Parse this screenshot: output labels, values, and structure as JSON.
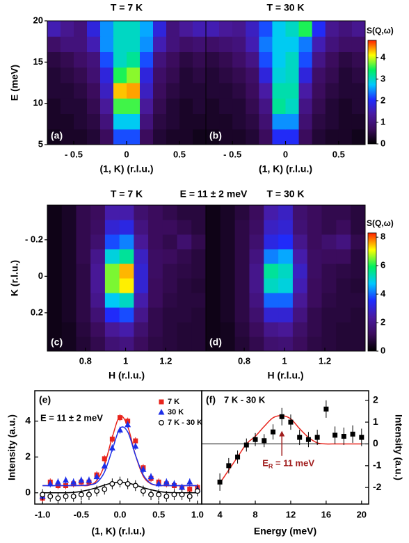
{
  "chart_data": [
    {
      "type": "heatmap",
      "xlabel": "(1, K) (r.l.u.)",
      "ylabel": "E (meV)",
      "xlim": [
        -0.75,
        0.75
      ],
      "ylim": [
        5,
        20
      ],
      "xticks": [
        {
          "value": -0.5,
          "label": "- 0.5"
        },
        0,
        0.5
      ],
      "yticks": [
        5,
        10,
        15,
        20
      ],
      "colormap": [
        "#000000",
        "#3b0c5c",
        "#4a1aa0",
        "#1e2cff",
        "#00c8ff",
        "#00f060",
        "#ffff00",
        "#ff2000"
      ],
      "colorbar": {
        "label": "S(Q,ω)",
        "lim": [
          0,
          4.8
        ],
        "ticks": [
          0,
          1,
          2,
          3,
          4
        ]
      },
      "panels": [
        {
          "title": "T = 7 K",
          "label": "(a)",
          "z": [
            [
              0.2,
              0.3,
              0.3,
              0.4,
              0.7,
              2.2,
              2.2,
              0.7,
              0.4,
              0.3,
              0.3,
              0.2
            ],
            [
              0.3,
              0.3,
              0.4,
              0.5,
              1.0,
              2.8,
              2.8,
              1.0,
              0.5,
              0.4,
              0.3,
              0.3
            ],
            [
              0.3,
              0.4,
              0.4,
              0.6,
              1.3,
              3.6,
              3.6,
              1.3,
              0.6,
              0.4,
              0.3,
              0.4
            ],
            [
              0.4,
              0.4,
              0.5,
              0.7,
              1.6,
              4.3,
              4.4,
              1.6,
              0.7,
              0.5,
              0.4,
              0.4
            ],
            [
              0.4,
              0.5,
              0.6,
              0.9,
              1.8,
              3.5,
              3.8,
              1.8,
              0.8,
              0.6,
              0.4,
              0.5
            ],
            [
              0.5,
              0.6,
              0.8,
              1.0,
              2.2,
              3.0,
              3.2,
              2.2,
              1.0,
              0.7,
              0.5,
              0.6
            ],
            [
              0.8,
              1.0,
              1.0,
              1.5,
              2.5,
              3.0,
              3.0,
              2.5,
              1.5,
              1.0,
              0.8,
              0.9
            ],
            [
              1.5,
              1.2,
              1.0,
              1.8,
              2.5,
              3.0,
              3.0,
              2.6,
              1.8,
              1.0,
              1.3,
              1.5
            ]
          ]
        },
        {
          "title": "T = 30 K",
          "label": "(b)",
          "z": [
            [
              0.2,
              0.3,
              0.3,
              0.4,
              0.7,
              2.0,
              2.0,
              0.7,
              0.4,
              0.3,
              0.3,
              0.2
            ],
            [
              0.3,
              0.3,
              0.4,
              0.5,
              0.9,
              2.5,
              2.5,
              0.9,
              0.5,
              0.4,
              0.3,
              0.3
            ],
            [
              0.3,
              0.4,
              0.4,
              0.6,
              1.1,
              3.2,
              3.0,
              1.1,
              0.6,
              0.4,
              0.3,
              0.4
            ],
            [
              0.4,
              0.4,
              0.5,
              0.7,
              1.4,
              3.1,
              3.1,
              1.4,
              0.7,
              0.5,
              0.4,
              0.4
            ],
            [
              0.4,
              0.5,
              0.6,
              0.8,
              1.8,
              2.9,
              3.0,
              1.8,
              0.8,
              0.6,
              0.4,
              0.5
            ],
            [
              0.5,
              0.6,
              0.8,
              1.1,
              2.2,
              2.8,
              3.0,
              2.2,
              1.1,
              0.7,
              0.5,
              0.6
            ],
            [
              0.8,
              0.9,
              1.0,
              1.5,
              2.4,
              2.8,
              2.8,
              2.4,
              1.5,
              1.0,
              0.8,
              0.8
            ],
            [
              1.5,
              1.3,
              1.2,
              1.6,
              2.2,
              2.8,
              3.0,
              3.5,
              2.0,
              1.2,
              1.0,
              1.2
            ]
          ]
        }
      ]
    },
    {
      "type": "heatmap",
      "subtitle": "E = 11 ± 2 meV",
      "xlabel": "H (r.l.u.)",
      "ylabel": "K (r.l.u.)",
      "xlim": [
        0.61,
        1.4
      ],
      "ylim": [
        0.41,
        -0.39
      ],
      "xticks": [
        0.8,
        1,
        1.2
      ],
      "yticks": [
        {
          "value": -0.2,
          "label": "- 0.2"
        },
        0,
        0.2
      ],
      "colormap": [
        "#000000",
        "#3b0c5c",
        "#4a1aa0",
        "#1e2cff",
        "#00c8ff",
        "#00f060",
        "#ffff00",
        "#ff2000"
      ],
      "colorbar": {
        "label": "S(Q,ω)",
        "lim": [
          0,
          8.3
        ],
        "ticks": [
          0,
          2,
          4,
          6,
          8
        ]
      },
      "panels": [
        {
          "title": "T = 7 K",
          "label": "(c)",
          "z": [
            [
              0.3,
              0.4,
              0.7,
              1.0,
              1.6,
              1.8,
              1.2,
              0.9,
              0.8,
              0.7,
              0.7
            ],
            [
              0.3,
              0.4,
              0.8,
              1.2,
              2.2,
              2.5,
              1.5,
              1.0,
              0.8,
              0.7,
              0.7
            ],
            [
              0.3,
              0.5,
              0.9,
              1.6,
              3.5,
              3.8,
              2.0,
              1.0,
              0.8,
              0.8,
              0.7
            ],
            [
              0.3,
              0.5,
              0.9,
              2.0,
              4.8,
              5.2,
              2.5,
              1.2,
              0.9,
              0.8,
              0.8
            ],
            [
              0.3,
              0.5,
              0.9,
              2.2,
              6.5,
              7.2,
              3.0,
              1.2,
              1.0,
              0.8,
              0.7
            ],
            [
              0.3,
              0.5,
              0.9,
              2.2,
              6.5,
              7.5,
              3.0,
              1.3,
              1.0,
              0.9,
              0.8
            ],
            [
              0.3,
              0.5,
              1.0,
              2.0,
              5.0,
              5.5,
              2.8,
              1.3,
              1.2,
              1.0,
              0.8
            ],
            [
              0.3,
              0.5,
              1.0,
              1.5,
              3.8,
              4.2,
              2.2,
              1.2,
              1.0,
              1.5,
              1.0
            ],
            [
              0.3,
              0.5,
              1.0,
              1.3,
              3.0,
              3.2,
              1.8,
              1.2,
              1.2,
              1.0,
              0.8
            ],
            [
              0.3,
              0.5,
              1.0,
              1.2,
              2.5,
              2.5,
              1.5,
              1.2,
              1.0,
              0.8,
              0.8
            ]
          ]
        },
        {
          "title": "T = 30 K",
          "label": "(d)",
          "z": [
            [
              0.3,
              0.4,
              0.7,
              1.0,
              1.5,
              1.6,
              1.2,
              0.9,
              0.8,
              0.7,
              0.7
            ],
            [
              0.3,
              0.4,
              0.8,
              1.2,
              2.0,
              2.2,
              1.4,
              1.0,
              0.8,
              0.7,
              0.7
            ],
            [
              0.3,
              0.5,
              0.9,
              1.5,
              3.0,
              3.0,
              1.8,
              1.0,
              0.8,
              0.8,
              0.7
            ],
            [
              0.3,
              0.5,
              0.9,
              1.8,
              4.0,
              4.0,
              2.2,
              1.2,
              0.9,
              0.8,
              0.8
            ],
            [
              0.3,
              0.5,
              0.9,
              2.0,
              5.2,
              5.0,
              2.6,
              1.2,
              1.0,
              0.8,
              0.7
            ],
            [
              0.3,
              0.5,
              0.9,
              2.0,
              5.5,
              5.2,
              2.8,
              1.3,
              1.0,
              0.9,
              0.8
            ],
            [
              0.3,
              0.5,
              0.9,
              1.8,
              4.2,
              4.5,
              2.5,
              1.3,
              1.2,
              1.2,
              0.8
            ],
            [
              0.3,
              0.5,
              0.9,
              1.5,
              3.2,
              3.5,
              2.0,
              1.2,
              1.5,
              1.8,
              1.0
            ],
            [
              0.3,
              0.5,
              0.9,
              1.3,
              2.8,
              3.0,
              1.6,
              1.2,
              1.0,
              1.2,
              0.8
            ],
            [
              0.3,
              0.5,
              0.8,
              1.2,
              2.5,
              2.8,
              1.5,
              1.2,
              1.0,
              1.0,
              0.8
            ]
          ]
        }
      ]
    },
    {
      "type": "scatter",
      "label": "(e)",
      "subtitle": "E = 11 ± 2 meV",
      "xlabel": "(1, K) (r.l.u.)",
      "ylabel": "Intensity (a.u.)",
      "xlim": [
        -1.1,
        1.055
      ],
      "ylim": [
        -0.63,
        5.7
      ],
      "xticks": [
        {
          "value": -1,
          "label": "-1.0"
        },
        {
          "value": -0.5,
          "label": "-0.5"
        },
        {
          "value": 0,
          "label": "0.0"
        },
        {
          "value": 0.5,
          "label": "0.5"
        },
        {
          "value": 1,
          "label": "1.0"
        }
      ],
      "yticks": [
        0,
        2,
        4
      ],
      "legend": "upper right",
      "x": [
        -1.0,
        -0.9,
        -0.8,
        -0.7,
        -0.6,
        -0.5,
        -0.4,
        -0.3,
        -0.2,
        -0.1,
        0.0,
        0.1,
        0.2,
        0.3,
        0.4,
        0.5,
        0.6,
        0.7,
        0.8,
        0.9,
        1.0
      ],
      "series": [
        {
          "name": "7 K",
          "color": "#e8241c",
          "marker": "square",
          "values": [
            -0.3,
            0.6,
            0.4,
            0.4,
            0.5,
            0.6,
            0.6,
            1.0,
            1.9,
            3.0,
            4.2,
            4.0,
            2.9,
            1.4,
            0.8,
            0.6,
            0.5,
            0.4,
            0.3,
            0.2,
            0.3
          ],
          "errors": [
            0.2,
            0.2,
            0.2,
            0.2,
            0.2,
            0.2,
            0.2,
            0.2,
            0.2,
            0.2,
            0.2,
            0.2,
            0.2,
            0.2,
            0.2,
            0.2,
            0.2,
            0.2,
            0.2,
            0.2,
            0.2
          ],
          "fit": [
            0.4,
            0.4,
            0.4,
            0.4,
            0.4,
            0.4,
            0.42,
            0.68,
            1.55,
            3.1,
            4.28,
            3.7,
            2.1,
            0.93,
            0.5,
            0.41,
            0.4,
            0.4,
            0.4,
            0.4,
            0.4
          ]
        },
        {
          "name": "30 K",
          "color": "#1c2ee8",
          "marker": "triangle",
          "values": [
            -0.2,
            0.5,
            0.6,
            0.7,
            0.6,
            0.7,
            0.7,
            0.9,
            1.5,
            2.5,
            3.5,
            3.8,
            2.6,
            1.3,
            0.9,
            0.5,
            0.6,
            0.5,
            0.3,
            0.6,
            0.2
          ],
          "errors": [
            0.2,
            0.2,
            0.2,
            0.2,
            0.2,
            0.2,
            0.2,
            0.2,
            0.2,
            0.2,
            0.2,
            0.2,
            0.2,
            0.2,
            0.2,
            0.2,
            0.2,
            0.2,
            0.2,
            0.2,
            0.2
          ],
          "fit": [
            0.4,
            0.4,
            0.4,
            0.4,
            0.4,
            0.41,
            0.44,
            0.57,
            1.16,
            2.4,
            3.6,
            3.4,
            2.1,
            1.0,
            0.52,
            0.42,
            0.4,
            0.4,
            0.4,
            0.4,
            0.4
          ]
        },
        {
          "name": "7 K - 30 K",
          "color": "#000000",
          "marker": "circle-open",
          "values": [
            -0.1,
            -0.2,
            -0.3,
            -0.2,
            -0.2,
            -0.1,
            -0.1,
            0.1,
            0.2,
            0.5,
            0.6,
            0.5,
            0.4,
            0.1,
            -0.1,
            -0.1,
            -0.2,
            -0.1,
            -0.1,
            -0.2,
            0.1
          ],
          "errors": [
            0.3,
            0.3,
            0.3,
            0.3,
            0.3,
            0.3,
            0.3,
            0.3,
            0.3,
            0.3,
            0.3,
            0.3,
            0.3,
            0.3,
            0.3,
            0.3,
            0.3,
            0.3,
            0.3,
            0.3,
            0.3
          ],
          "fit": [
            0,
            0,
            0,
            0,
            0.02,
            0.08,
            0.17,
            0.29,
            0.43,
            0.55,
            0.6,
            0.55,
            0.43,
            0.29,
            0.17,
            0.08,
            0.02,
            0,
            0,
            0,
            0
          ]
        }
      ]
    },
    {
      "type": "scatter",
      "label": "(f)",
      "subtitle": "7 K - 30 K",
      "xlabel": "Energy (meV)",
      "ylabel": "Intensity (a.u.)",
      "xlim": [
        1.95,
        20.8
      ],
      "y2lim": [
        -2.76,
        2.44
      ],
      "xticks": [
        4,
        8,
        12,
        16,
        20
      ],
      "y2ticks": [
        -2,
        -1,
        0,
        1,
        2
      ],
      "reference_line": 0,
      "x": [
        4,
        5,
        6,
        7,
        8,
        9,
        10,
        11,
        12,
        13,
        14,
        15,
        16,
        17,
        18,
        19,
        20
      ],
      "series": [
        {
          "color": "#000000",
          "fit_color": "#e8241c",
          "marker": "square",
          "axis": "y2",
          "values": [
            -1.75,
            -1.0,
            -0.6,
            -0.05,
            0.2,
            0.15,
            0.55,
            1.25,
            1.0,
            0.3,
            0.2,
            0.3,
            1.6,
            0.4,
            0.35,
            0.45,
            0.3
          ],
          "errors": [
            0.4,
            0.35,
            0.3,
            0.3,
            0.3,
            0.3,
            0.35,
            0.4,
            0.35,
            0.35,
            0.35,
            0.35,
            0.4,
            0.4,
            0.4,
            0.4,
            0.4
          ],
          "fit": [
            -1.8,
            -1.2,
            -0.6,
            0.0,
            0.35,
            0.8,
            1.2,
            1.3,
            1.15,
            0.7,
            0.3,
            0.05,
            0,
            0,
            0,
            0,
            0
          ]
        }
      ],
      "arrow": {
        "x": 11,
        "y_from": -0.55,
        "y_to": 0.6,
        "color": "#a01c1c",
        "text": "E",
        "sub": "R",
        "rest": " = 11 meV"
      }
    }
  ]
}
